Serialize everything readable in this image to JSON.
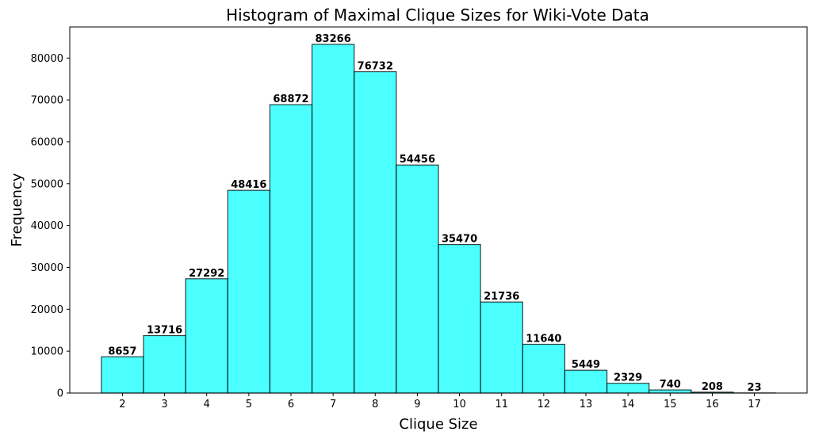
{
  "chart_data": {
    "type": "bar",
    "title": "Histogram of Maximal Clique Sizes for Wiki-Vote Data",
    "xlabel": "Clique Size",
    "ylabel": "Frequency",
    "categories": [
      "2",
      "3",
      "4",
      "5",
      "6",
      "7",
      "8",
      "9",
      "10",
      "11",
      "12",
      "13",
      "14",
      "15",
      "16",
      "17"
    ],
    "x_values": [
      2,
      3,
      4,
      5,
      6,
      7,
      8,
      9,
      10,
      11,
      12,
      13,
      14,
      15,
      16,
      17
    ],
    "values": [
      8657,
      13716,
      27292,
      48416,
      68872,
      83266,
      76732,
      54456,
      35470,
      21736,
      11640,
      5449,
      2329,
      740,
      208,
      23
    ],
    "data_labels": [
      "8657",
      "13716",
      "27292",
      "48416",
      "68872",
      "83266",
      "76732",
      "54456",
      "35470",
      "21736",
      "11640",
      "5449",
      "2329",
      "740",
      "208",
      "23"
    ],
    "xlim": [
      0.75,
      18.25
    ],
    "ylim": [
      0,
      87429
    ],
    "yticks": [
      0,
      10000,
      20000,
      30000,
      40000,
      50000,
      60000,
      70000,
      80000
    ],
    "ytick_labels": [
      "0",
      "10000",
      "20000",
      "30000",
      "40000",
      "50000",
      "60000",
      "70000",
      "80000"
    ],
    "bar_color": "#00FFFF",
    "bar_opacity": 0.7,
    "edge_color": "#000000",
    "grid": false,
    "legend": "none"
  }
}
